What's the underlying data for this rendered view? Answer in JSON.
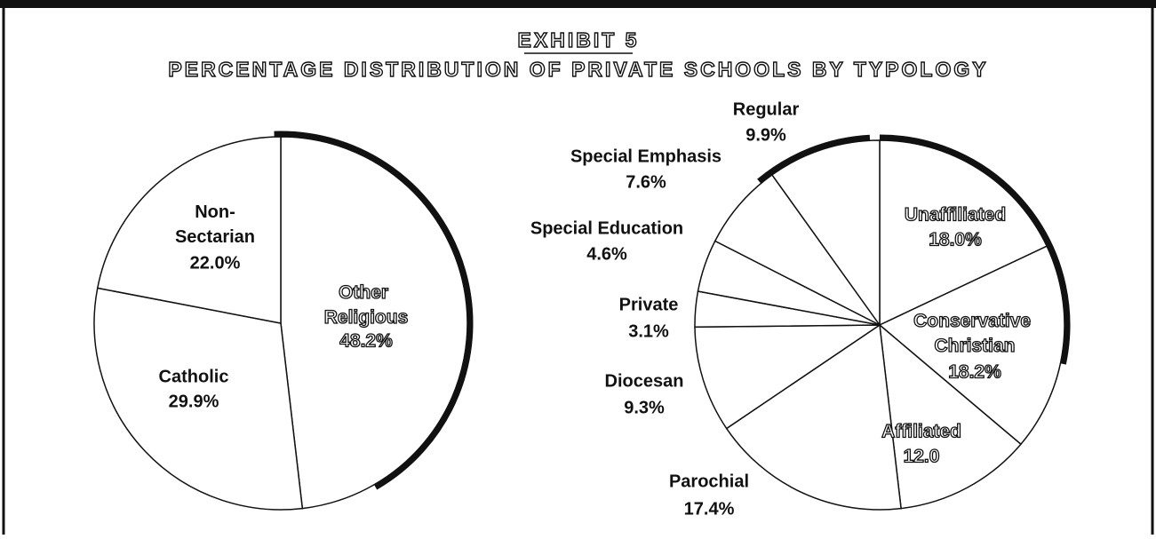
{
  "chart_data": [
    {
      "type": "pie",
      "title": "EXHIBIT 5",
      "subtitle": "PERCENTAGE DISTRIBUTION OF PRIVATE SCHOOLS BY TYPOLOGY",
      "categories": [
        "Other Religious",
        "Catholic",
        "Non-Sectarian"
      ],
      "values": [
        48.2,
        29.9,
        22.0
      ],
      "value_labels": [
        "48.2%",
        "29.9%",
        "22.0%"
      ],
      "color": "#ffffff"
    },
    {
      "type": "pie",
      "categories": [
        "Unaffiliated",
        "Conservative Christian",
        "Affiliated",
        "Parochial",
        "Diocesan",
        "Private",
        "Special Education",
        "Special Emphasis",
        "Regular"
      ],
      "values": [
        18.0,
        18.2,
        12.0,
        17.4,
        9.3,
        3.1,
        4.6,
        7.6,
        9.9
      ],
      "value_labels": [
        "18.0%",
        "18.2%",
        "12.0",
        "17.4%",
        "9.3%",
        "3.1%",
        "4.6%",
        "7.6%",
        "9.9%"
      ],
      "color": "#ffffff"
    }
  ]
}
